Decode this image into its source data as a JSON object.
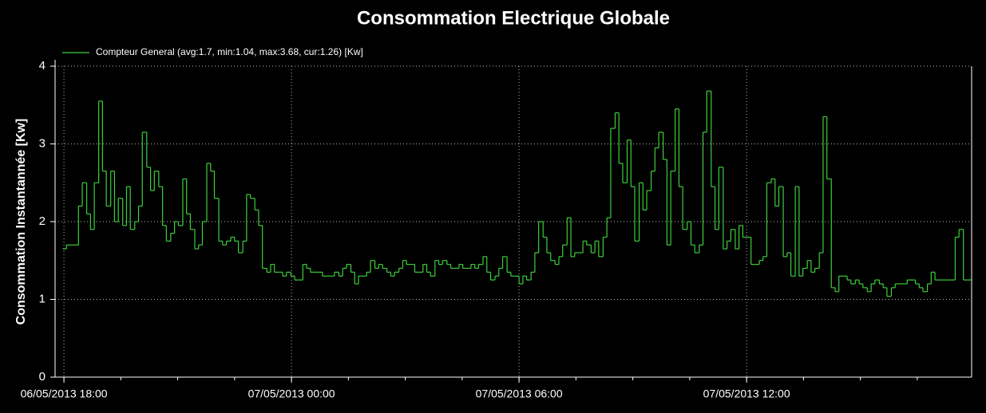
{
  "chart_data": {
    "type": "step",
    "title": "Consommation Electrique Globale",
    "ylabel": "Consommation Instantannée [Kw]",
    "background": "#000000",
    "grid": true,
    "legend": "top-left",
    "xlim": [
      "2013-05-06T17:46",
      "2013-05-07T17:56"
    ],
    "xticks": [
      {
        "value": "2013-05-06T18:00",
        "label": "06/05/2013 18:00"
      },
      {
        "value": "2013-05-07T00:00",
        "label": "07/05/2013 00:00"
      },
      {
        "value": "2013-05-07T06:00",
        "label": "07/05/2013 06:00"
      },
      {
        "value": "2013-05-07T12:00",
        "label": "07/05/2013 12:00"
      }
    ],
    "xminorticks": [
      "2013-05-06T18:00",
      "2013-05-06T19:30",
      "2013-05-06T21:00",
      "2013-05-06T22:30",
      "2013-05-07T00:00",
      "2013-05-07T01:30",
      "2013-05-07T03:00",
      "2013-05-07T04:30",
      "2013-05-07T06:00",
      "2013-05-07T07:30",
      "2013-05-07T09:00",
      "2013-05-07T10:30",
      "2013-05-07T12:00",
      "2013-05-07T13:30",
      "2013-05-07T15:00",
      "2013-05-07T16:30"
    ],
    "ylim": [
      0,
      4
    ],
    "yticks": [
      0,
      1,
      2,
      3,
      4
    ],
    "x": [
      "2013-05-06T17:58",
      "2013-05-06T18:04",
      "2013-05-06T18:10",
      "2013-05-06T18:17",
      "2013-05-06T18:23",
      "2013-05-06T18:29",
      "2013-05-06T18:36",
      "2013-05-06T18:42",
      "2013-05-06T18:48",
      "2013-05-06T18:55",
      "2013-05-06T19:01",
      "2013-05-06T19:07",
      "2013-05-06T19:14",
      "2013-05-06T19:20",
      "2013-05-06T19:26",
      "2013-05-06T19:33",
      "2013-05-06T19:39",
      "2013-05-06T19:45",
      "2013-05-06T19:52",
      "2013-05-06T19:58",
      "2013-05-06T20:04",
      "2013-05-06T20:11",
      "2013-05-06T20:17",
      "2013-05-06T20:23",
      "2013-05-06T20:30",
      "2013-05-06T20:36",
      "2013-05-06T20:42",
      "2013-05-06T20:49",
      "2013-05-06T20:55",
      "2013-05-06T21:01",
      "2013-05-06T21:08",
      "2013-05-06T21:14",
      "2013-05-06T21:20",
      "2013-05-06T21:27",
      "2013-05-06T21:33",
      "2013-05-06T21:39",
      "2013-05-06T21:46",
      "2013-05-06T21:52",
      "2013-05-06T21:58",
      "2013-05-06T22:05",
      "2013-05-06T22:11",
      "2013-05-06T22:17",
      "2013-05-06T22:24",
      "2013-05-06T22:30",
      "2013-05-06T22:36",
      "2013-05-06T22:43",
      "2013-05-06T22:49",
      "2013-05-06T22:55",
      "2013-05-06T23:02",
      "2013-05-06T23:08",
      "2013-05-06T23:14",
      "2013-05-06T23:21",
      "2013-05-06T23:27",
      "2013-05-06T23:33",
      "2013-05-06T23:40",
      "2013-05-06T23:46",
      "2013-05-06T23:52",
      "2013-05-06T23:59",
      "2013-05-07T00:05",
      "2013-05-07T00:11",
      "2013-05-07T00:18",
      "2013-05-07T00:24",
      "2013-05-07T00:30",
      "2013-05-07T00:37",
      "2013-05-07T00:43",
      "2013-05-07T00:49",
      "2013-05-07T00:56",
      "2013-05-07T01:02",
      "2013-05-07T01:08",
      "2013-05-07T01:15",
      "2013-05-07T01:21",
      "2013-05-07T01:27",
      "2013-05-07T01:34",
      "2013-05-07T01:40",
      "2013-05-07T01:46",
      "2013-05-07T01:53",
      "2013-05-07T01:59",
      "2013-05-07T02:05",
      "2013-05-07T02:12",
      "2013-05-07T02:18",
      "2013-05-07T02:24",
      "2013-05-07T02:31",
      "2013-05-07T02:37",
      "2013-05-07T02:43",
      "2013-05-07T02:50",
      "2013-05-07T02:56",
      "2013-05-07T03:02",
      "2013-05-07T03:09",
      "2013-05-07T03:15",
      "2013-05-07T03:21",
      "2013-05-07T03:28",
      "2013-05-07T03:34",
      "2013-05-07T03:40",
      "2013-05-07T03:47",
      "2013-05-07T03:53",
      "2013-05-07T03:59",
      "2013-05-07T04:06",
      "2013-05-07T04:12",
      "2013-05-07T04:18",
      "2013-05-07T04:25",
      "2013-05-07T04:31",
      "2013-05-07T04:37",
      "2013-05-07T04:44",
      "2013-05-07T04:50",
      "2013-05-07T04:56",
      "2013-05-07T05:03",
      "2013-05-07T05:09",
      "2013-05-07T05:15",
      "2013-05-07T05:22",
      "2013-05-07T05:28",
      "2013-05-07T05:34",
      "2013-05-07T05:41",
      "2013-05-07T05:47",
      "2013-05-07T05:53",
      "2013-05-07T06:00",
      "2013-05-07T06:06",
      "2013-05-07T06:12",
      "2013-05-07T06:19",
      "2013-05-07T06:25",
      "2013-05-07T06:31",
      "2013-05-07T06:38",
      "2013-05-07T06:44",
      "2013-05-07T06:50",
      "2013-05-07T06:57",
      "2013-05-07T07:03",
      "2013-05-07T07:09",
      "2013-05-07T07:16",
      "2013-05-07T07:22",
      "2013-05-07T07:28",
      "2013-05-07T07:35",
      "2013-05-07T07:41",
      "2013-05-07T07:47",
      "2013-05-07T07:54",
      "2013-05-07T08:00",
      "2013-05-07T08:06",
      "2013-05-07T08:13",
      "2013-05-07T08:19",
      "2013-05-07T08:25",
      "2013-05-07T08:32",
      "2013-05-07T08:38",
      "2013-05-07T08:44",
      "2013-05-07T08:51",
      "2013-05-07T08:57",
      "2013-05-07T09:03",
      "2013-05-07T09:10",
      "2013-05-07T09:16",
      "2013-05-07T09:22",
      "2013-05-07T09:29",
      "2013-05-07T09:35",
      "2013-05-07T09:41",
      "2013-05-07T09:48",
      "2013-05-07T09:54",
      "2013-05-07T10:00",
      "2013-05-07T10:07",
      "2013-05-07T10:13",
      "2013-05-07T10:19",
      "2013-05-07T10:26",
      "2013-05-07T10:32",
      "2013-05-07T10:38",
      "2013-05-07T10:45",
      "2013-05-07T10:51",
      "2013-05-07T10:57",
      "2013-05-07T11:04",
      "2013-05-07T11:10",
      "2013-05-07T11:16",
      "2013-05-07T11:23",
      "2013-05-07T11:29",
      "2013-05-07T11:35",
      "2013-05-07T11:42",
      "2013-05-07T11:48",
      "2013-05-07T11:54",
      "2013-05-07T12:01",
      "2013-05-07T12:07",
      "2013-05-07T12:13",
      "2013-05-07T12:20",
      "2013-05-07T12:26",
      "2013-05-07T12:32",
      "2013-05-07T12:39",
      "2013-05-07T12:45",
      "2013-05-07T12:51",
      "2013-05-07T12:58",
      "2013-05-07T13:04",
      "2013-05-07T13:10",
      "2013-05-07T13:17",
      "2013-05-07T13:23",
      "2013-05-07T13:29",
      "2013-05-07T13:36",
      "2013-05-07T13:42",
      "2013-05-07T13:48",
      "2013-05-07T13:55",
      "2013-05-07T14:01",
      "2013-05-07T14:07",
      "2013-05-07T14:14",
      "2013-05-07T14:20",
      "2013-05-07T14:26",
      "2013-05-07T14:33",
      "2013-05-07T14:39",
      "2013-05-07T14:45",
      "2013-05-07T14:52",
      "2013-05-07T14:58",
      "2013-05-07T15:04",
      "2013-05-07T15:11",
      "2013-05-07T15:17",
      "2013-05-07T15:23",
      "2013-05-07T15:30",
      "2013-05-07T15:36",
      "2013-05-07T15:42",
      "2013-05-07T15:49",
      "2013-05-07T15:55",
      "2013-05-07T16:01",
      "2013-05-07T16:08",
      "2013-05-07T16:14",
      "2013-05-07T16:20",
      "2013-05-07T16:27",
      "2013-05-07T16:33",
      "2013-05-07T16:39",
      "2013-05-07T16:46",
      "2013-05-07T16:52",
      "2013-05-07T16:58",
      "2013-05-07T17:05",
      "2013-05-07T17:11",
      "2013-05-07T17:17",
      "2013-05-07T17:24",
      "2013-05-07T17:30",
      "2013-05-07T17:36",
      "2013-05-07T17:43",
      "2013-05-07T17:49",
      "2013-05-07T17:55"
    ],
    "series": [
      {
        "name": "Compteur General (avg:1.7, min:1.04, max:3.68, cur:1.26) [Kw]",
        "color": "#3ccf3c",
        "values": [
          1.65,
          1.7,
          1.7,
          1.7,
          2.2,
          2.5,
          2.1,
          1.9,
          2.5,
          3.55,
          2.65,
          2.2,
          2.65,
          2.0,
          2.3,
          1.95,
          2.45,
          1.9,
          2.0,
          2.2,
          3.15,
          2.7,
          2.4,
          2.65,
          2.45,
          1.95,
          1.75,
          1.85,
          2.0,
          1.95,
          2.55,
          2.1,
          1.9,
          1.65,
          1.7,
          2.0,
          2.75,
          2.65,
          2.3,
          1.75,
          1.7,
          1.75,
          1.8,
          1.75,
          1.6,
          1.75,
          2.35,
          2.3,
          2.15,
          1.95,
          1.4,
          1.35,
          1.45,
          1.35,
          1.35,
          1.3,
          1.35,
          1.3,
          1.25,
          1.25,
          1.45,
          1.4,
          1.35,
          1.35,
          1.35,
          1.3,
          1.3,
          1.3,
          1.35,
          1.3,
          1.4,
          1.45,
          1.35,
          1.2,
          1.3,
          1.3,
          1.35,
          1.5,
          1.4,
          1.45,
          1.4,
          1.35,
          1.3,
          1.35,
          1.4,
          1.5,
          1.45,
          1.45,
          1.35,
          1.35,
          1.45,
          1.35,
          1.3,
          1.5,
          1.45,
          1.5,
          1.45,
          1.4,
          1.4,
          1.45,
          1.4,
          1.4,
          1.45,
          1.4,
          1.45,
          1.55,
          1.35,
          1.25,
          1.3,
          1.4,
          1.55,
          1.35,
          1.3,
          1.3,
          1.2,
          1.3,
          1.25,
          1.35,
          1.6,
          2.0,
          1.8,
          1.6,
          1.5,
          1.45,
          1.55,
          1.7,
          2.05,
          1.55,
          1.6,
          1.6,
          1.75,
          1.7,
          1.6,
          1.75,
          1.55,
          1.8,
          2.05,
          3.2,
          3.4,
          2.75,
          2.5,
          3.05,
          2.45,
          1.75,
          2.5,
          2.15,
          2.4,
          2.65,
          2.95,
          3.15,
          2.8,
          1.7,
          2.65,
          3.45,
          2.45,
          1.9,
          2.0,
          1.7,
          1.6,
          1.7,
          3.15,
          3.68,
          2.45,
          1.9,
          2.7,
          1.65,
          1.75,
          1.9,
          1.65,
          1.95,
          1.8,
          1.8,
          1.45,
          1.45,
          1.5,
          1.55,
          2.5,
          2.55,
          2.2,
          2.45,
          1.55,
          1.6,
          1.3,
          2.45,
          1.3,
          1.4,
          1.5,
          1.35,
          1.4,
          1.6,
          3.35,
          2.55,
          1.15,
          1.1,
          1.3,
          1.3,
          1.25,
          1.2,
          1.25,
          1.2,
          1.15,
          1.1,
          1.2,
          1.25,
          1.2,
          1.15,
          1.04,
          1.15,
          1.2,
          1.2,
          1.2,
          1.25,
          1.25,
          1.2,
          1.15,
          1.1,
          1.2,
          1.35,
          1.25,
          1.25,
          1.25,
          1.25,
          1.25,
          1.8,
          1.9,
          1.25,
          1.25,
          1.26
        ]
      }
    ]
  }
}
